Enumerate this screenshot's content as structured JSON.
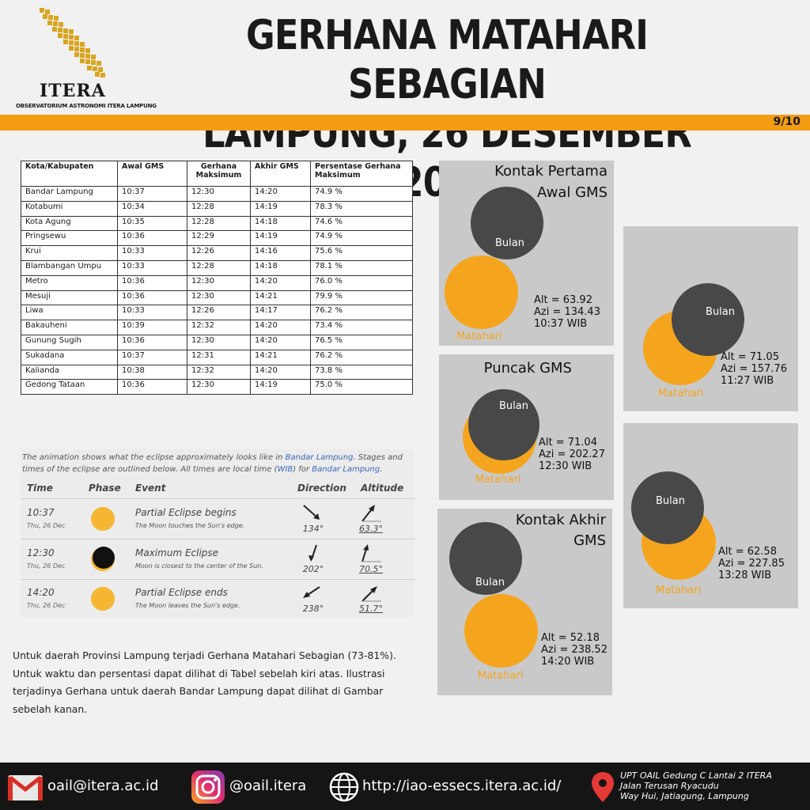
{
  "header": {
    "logo_name": "ITERA",
    "logo_sub": "OBSERVATORIUM ASTRONOMI ITERA LAMPUNG",
    "title_line1": "GERHANA MATAHARI SEBAGIAN",
    "title_line2": "LAMPUNG, 26 DESEMBER 2019",
    "page_number": "9/10"
  },
  "table": {
    "headers": [
      "Kota/Kabupaten",
      "Awal GMS",
      "Gerhana Maksimum",
      "Akhir GMS",
      "Persentase Gerhana Maksimum"
    ],
    "rows": [
      [
        "Bandar Lampung",
        "10:37",
        "12:30",
        "14:20",
        "74.9 %"
      ],
      [
        "Kotabumi",
        "10:34",
        "12:28",
        "14:19",
        "78.3 %"
      ],
      [
        "Kota Agung",
        "10:35",
        "12:28",
        "14:18",
        "74.6 %"
      ],
      [
        "Pringsewu",
        "10:36",
        "12:29",
        "14:19",
        "74.9 %"
      ],
      [
        "Krui",
        "10:33",
        "12:26",
        "14:16",
        "75.6 %"
      ],
      [
        "Blambangan Umpu",
        "10:33",
        "12:28",
        "14:18",
        "78.1 %"
      ],
      [
        "Metro",
        "10:36",
        "12:30",
        "14:20",
        "76.0 %"
      ],
      [
        "Mesuji",
        "10:36",
        "12:30",
        "14:21",
        "79.9 %"
      ],
      [
        "Liwa",
        "10:33",
        "12:26",
        "14:17",
        "76.2 %"
      ],
      [
        "Bakauheni",
        "10:39",
        "12:32",
        "14:20",
        "73.4 %"
      ],
      [
        "Gunung Sugih",
        "10:36",
        "12:30",
        "14:20",
        "76.5 %"
      ],
      [
        "Sukadana",
        "10:37",
        "12:31",
        "14:21",
        "76.2 %"
      ],
      [
        "Kalianda",
        "10:38",
        "12:32",
        "14:20",
        "73.8 %"
      ],
      [
        "Gedong Tataan",
        "10:36",
        "12:30",
        "14:19",
        "75.0 %"
      ]
    ]
  },
  "timeline": {
    "intro_a": "The animation shows what the eclipse approximately looks like in ",
    "intro_link1": "Bandar Lampung",
    "intro_b": ". Stages and times of the eclipse are outlined below. All times are local time (",
    "intro_link2": "WIB",
    "intro_c": ") for ",
    "intro_link3": "Bandar Lampung",
    "intro_d": ".",
    "col_time": "Time",
    "col_phase": "Phase",
    "col_event": "Event",
    "col_direction": "Direction",
    "col_altitude": "Altitude",
    "rows": [
      {
        "time": "10:37",
        "date": "Thu, 26 Dec",
        "event": "Partial Eclipse begins",
        "desc": "The Moon touches the Sun's edge.",
        "direction": "134°",
        "altitude": "63.3°"
      },
      {
        "time": "12:30",
        "date": "Thu, 26 Dec",
        "event": "Maximum Eclipse",
        "desc": "Moon is closest to the center of the Sun.",
        "direction": "202°",
        "altitude": "70.5°"
      },
      {
        "time": "14:20",
        "date": "Thu, 26 Dec",
        "event": "Partial Eclipse ends",
        "desc": "The Moon leaves the Sun's edge.",
        "direction": "238°",
        "altitude": "51.7°"
      }
    ]
  },
  "paragraph": "Untuk daerah Provinsi Lampung terjadi Gerhana Matahari Sebagian (73-81%). Untuk waktu dan persentasi dapat dilihat di Tabel sebelah kiri atas. Ilustrasi terjadinya Gerhana untuk daerah Bandar Lampung dapat dilihat di Gambar sebelah kanan.",
  "panels": {
    "moon_label": "Bulan",
    "sun_label": "Matahari",
    "p1": {
      "title1": "Kontak Pertama",
      "title2": "Awal GMS",
      "alt": "Alt = 63.92",
      "azi": "Azi = 134.43",
      "time": "10:37 WIB"
    },
    "p2": {
      "title": "Puncak GMS",
      "alt": "Alt = 71.04",
      "azi": "Azi = 202.27",
      "time": "12:30 WIB"
    },
    "p3": {
      "title1": "Kontak Akhir",
      "title2": "GMS",
      "alt": "Alt = 52.18",
      "azi": "Azi = 238.52",
      "time": "14:20 WIB"
    },
    "p4": {
      "alt": "Alt = 71.05",
      "azi": "Azi = 157.76",
      "time": "11:27 WIB"
    },
    "p5": {
      "alt": "Alt = 62.58",
      "azi": "Azi = 227.85",
      "time": "13:28 WIB"
    }
  },
  "footer": {
    "email": "oail@itera.ac.id",
    "instagram": "@oail.itera",
    "website": "http://iao-essecs.itera.ac.id/",
    "address1": "UPT OAIL Gedung C Lantai 2 ITERA",
    "address2": "Jalan Terusan Ryacudu",
    "address3": "Way Hui, Jatiagung, Lampung"
  },
  "colors": {
    "accent": "#f39c12",
    "sun": "#f5a51d",
    "moon": "#484848",
    "panel": "#c9c9c9",
    "footer": "#151515"
  }
}
